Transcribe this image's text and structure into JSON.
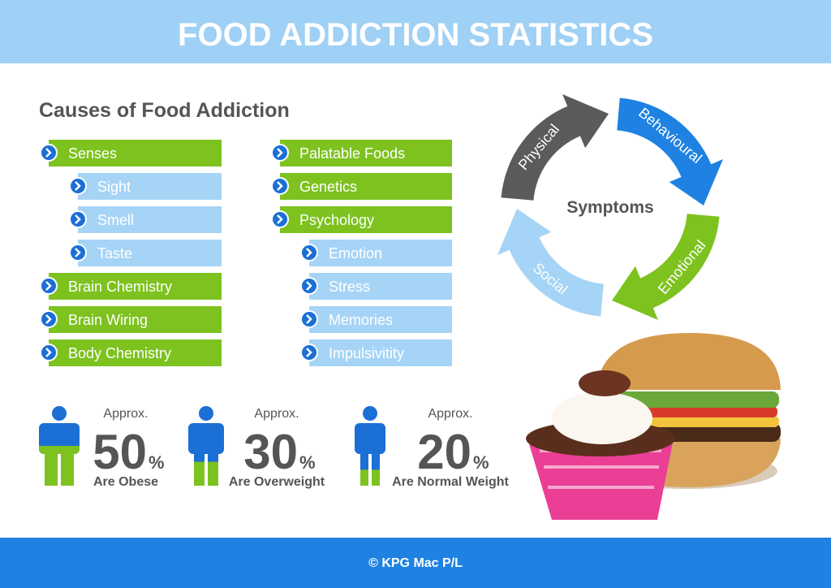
{
  "header": {
    "title": "FOOD ADDICTION STATISTICS"
  },
  "causes": {
    "title": "Causes of Food Addiction",
    "columns": [
      [
        {
          "label": "Senses",
          "children": [
            "Sight",
            "Smell",
            "Taste"
          ]
        },
        {
          "label": "Brain Chemistry"
        },
        {
          "label": "Brain Wiring"
        },
        {
          "label": "Body Chemistry"
        }
      ],
      [
        {
          "label": "Palatable Foods"
        },
        {
          "label": "Genetics"
        },
        {
          "label": "Psychology",
          "children": [
            "Emotion",
            "Stress",
            "Memories",
            "Impulsivitity"
          ]
        }
      ]
    ]
  },
  "symptoms": {
    "title": "Symptoms",
    "cycle": [
      "Physical",
      "Behavioural",
      "Emotional",
      "Social"
    ]
  },
  "stats": [
    {
      "prefix": "Approx.",
      "value": 50,
      "unit": "%",
      "label": "Are Obese"
    },
    {
      "prefix": "Approx.",
      "value": 30,
      "unit": "%",
      "label": "Are Overweight"
    },
    {
      "prefix": "Approx.",
      "value": 20,
      "unit": "%",
      "label": "Are Normal Weight"
    }
  ],
  "footer": {
    "text": "© KPG Mac P/L"
  }
}
